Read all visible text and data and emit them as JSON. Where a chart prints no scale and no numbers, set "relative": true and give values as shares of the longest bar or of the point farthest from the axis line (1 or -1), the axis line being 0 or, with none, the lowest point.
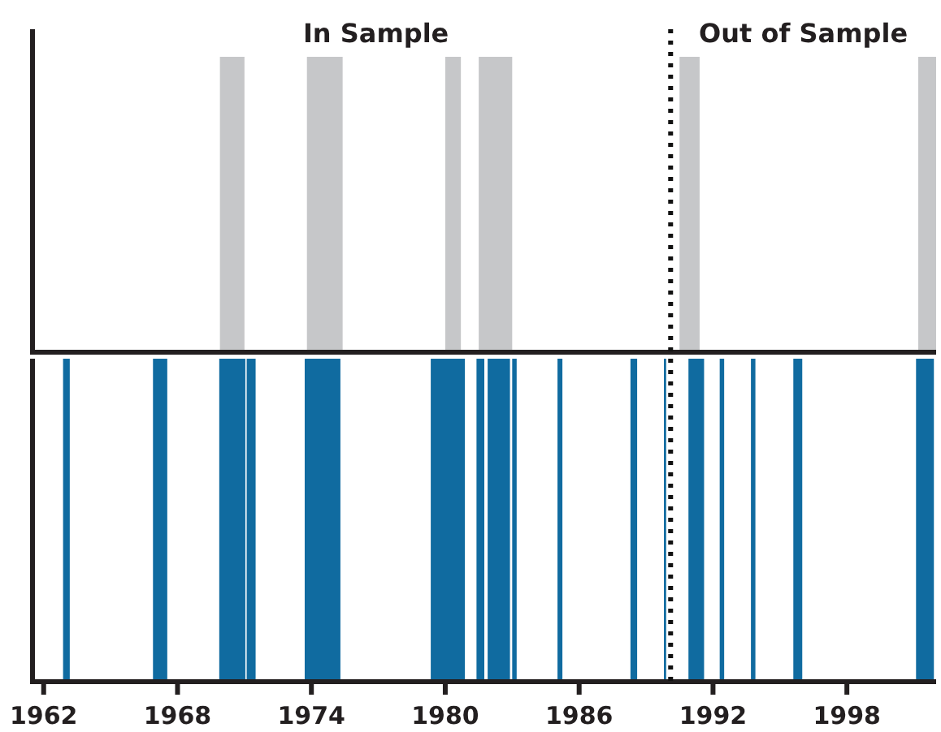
{
  "chart_data": [
    {
      "type": "area",
      "relative": true,
      "x": [
        1961.5,
        1969.9,
        1969.9,
        1971.0,
        1971.0,
        1973.8,
        1973.8,
        1975.4,
        1975.4,
        1980.0,
        1980.0,
        1980.7,
        1980.7,
        1981.5,
        1981.5,
        1983.0,
        1983.0,
        1990.5,
        1990.5,
        1991.4,
        1991.4,
        2001.2,
        2001.2,
        2002
      ],
      "values": [
        0,
        0,
        1,
        1,
        0,
        0,
        1,
        1,
        0,
        0,
        1,
        1,
        0,
        0,
        1,
        1,
        0,
        0,
        1,
        1,
        0,
        0,
        1,
        1
      ],
      "color": "#c6c7c9",
      "xlim": [
        1961.5,
        2002
      ],
      "ref_lines": [
        {
          "axis": "x",
          "value": 1990.1,
          "line_style": "dotted"
        }
      ],
      "annotations": [
        "In Sample",
        "Out of Sample"
      ]
    },
    {
      "type": "area",
      "relative": true,
      "x": [
        1961.5,
        1962.87,
        1962.87,
        1963.17,
        1963.17,
        1966.9,
        1966.9,
        1967.54,
        1967.54,
        1969.87,
        1969.87,
        1971.04,
        1971.04,
        1971.1,
        1971.1,
        1971.5,
        1971.5,
        1973.7,
        1973.7,
        1975.3,
        1975.3,
        1979.35,
        1979.35,
        1980.88,
        1980.88,
        1981.4,
        1981.4,
        1981.75,
        1981.75,
        1981.9,
        1981.9,
        1982.9,
        1982.9,
        1983.0,
        1983.0,
        1983.2,
        1983.2,
        1985.03,
        1985.03,
        1985.25,
        1985.25,
        1988.3,
        1988.3,
        1988.6,
        1988.6,
        1989.8,
        1989.8,
        1989.9,
        1989.9,
        1990.9,
        1990.9,
        1991.6,
        1991.6,
        1992.3,
        1992.3,
        1992.5,
        1992.5,
        1993.7,
        1993.7,
        1993.9,
        1993.9,
        1995.6,
        1995.6,
        1996.0,
        1996.0,
        2001.1,
        2001.1,
        2001.9,
        2001.9,
        2002
      ],
      "values": [
        0,
        0,
        1,
        1,
        0,
        0,
        1,
        1,
        0,
        0,
        1,
        1,
        0,
        0,
        1,
        1,
        0,
        0,
        1,
        1,
        0,
        0,
        1,
        1,
        0,
        0,
        1,
        1,
        0,
        0,
        1,
        1,
        0,
        0,
        1,
        1,
        0,
        0,
        1,
        1,
        0,
        0,
        1,
        1,
        0,
        0,
        1,
        1,
        0,
        0,
        1,
        1,
        0,
        0,
        1,
        1,
        0,
        0,
        1,
        1,
        0,
        0,
        1,
        1,
        0,
        0,
        1,
        1,
        0,
        0
      ],
      "color": "#106ba0",
      "xlim": [
        1961.5,
        2002
      ],
      "xticks": [
        1962,
        1968,
        1974,
        1980,
        1986,
        1992,
        1998
      ],
      "ref_lines": [
        {
          "axis": "x",
          "value": 1990.1,
          "line_style": "dotted"
        }
      ]
    }
  ]
}
